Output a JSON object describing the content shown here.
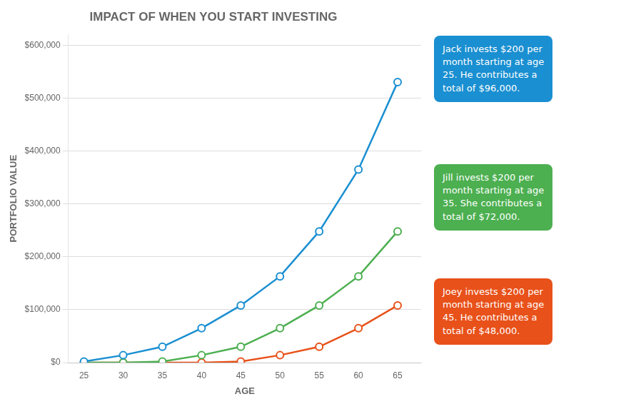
{
  "chart_data": {
    "type": "line",
    "title": "IMPACT OF WHEN YOU START INVESTING",
    "x_label": "AGE",
    "y_label": "PORTFOLIO VALUE",
    "x": [
      25,
      30,
      35,
      40,
      45,
      50,
      55,
      60,
      65
    ],
    "series": [
      {
        "color": "#1a8fd1",
        "marker": "circle",
        "values": [
          2000,
          14000,
          30000,
          65000,
          108000,
          163000,
          248000,
          365000,
          530000
        ]
      },
      {
        "color": "#4caf50",
        "marker": "circle",
        "values": [
          0,
          0,
          2000,
          14000,
          30000,
          65000,
          108000,
          163000,
          248000
        ]
      },
      {
        "color": "#e8511a",
        "marker": "circle",
        "values": [
          0,
          0,
          0,
          0,
          2000,
          14000,
          30000,
          65000,
          108000
        ]
      }
    ],
    "xlim": [
      23,
      68
    ],
    "xticks": [
      25,
      30,
      35,
      40,
      45,
      50,
      55,
      60,
      65
    ],
    "ylim": [
      0,
      620000
    ],
    "yticks": [
      {
        "value": 0,
        "label": "$0"
      },
      {
        "value": 100000,
        "label": "$100,000"
      },
      {
        "value": 200000,
        "label": "$200,000"
      },
      {
        "value": 300000,
        "label": "$300,000"
      },
      {
        "value": 400000,
        "label": "$400,000"
      },
      {
        "value": 500000,
        "label": "$500,000"
      },
      {
        "value": 600000,
        "label": "$600,000"
      }
    ],
    "grid": "y",
    "annotations": [
      {
        "text": "Jack invests $200 per\nmonth starting at age\n25. He contributes a\ntotal of $96,000.",
        "color": "#1a8fd1"
      },
      {
        "text": "Jill invests $200 per\nmonth starting at age\n35. She contributes a\ntotal of $72,000.",
        "color": "#4caf50"
      },
      {
        "text": "Joey invests $200 per\nmonth starting at age\n45. He contributes a\ntotal of $48,000.",
        "color": "#e8511a"
      }
    ]
  }
}
